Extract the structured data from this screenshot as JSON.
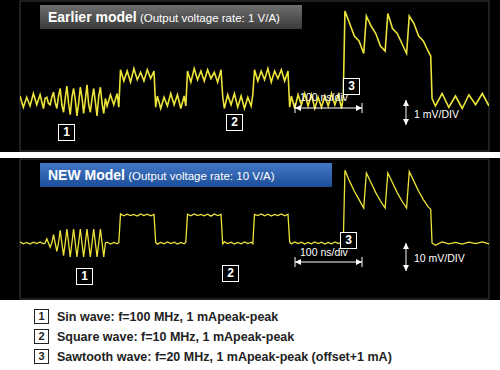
{
  "chart_data": [
    {
      "type": "line",
      "title": "Earlier model",
      "subtitle": "(Output voltage rate: 1 V/A)",
      "color": "#ece43a",
      "xlim": [
        0,
        700
      ],
      "ylim": [
        -2,
        4
      ],
      "tick_labels": false,
      "annotations": [
        "1",
        "2",
        "3",
        "100 ns/div",
        "1 mV/DIV"
      ],
      "x": [
        0,
        5,
        10,
        15,
        20,
        25,
        30,
        35,
        37.5,
        40,
        42.5,
        45,
        47.5,
        50,
        52.5,
        55,
        57.5,
        60,
        62.5,
        65,
        67.5,
        70,
        72.5,
        75,
        77.5,
        80,
        82.5,
        85,
        87.5,
        90,
        92.5,
        95,
        97.5,
        100,
        102.5,
        105,
        107.5,
        110,
        112.5,
        115,
        117.5,
        120,
        122.5,
        125,
        127.5,
        130,
        135,
        140,
        145,
        147.5,
        150,
        155,
        160,
        165,
        170,
        175,
        180,
        185,
        190,
        195,
        200,
        202.5,
        205,
        210,
        215,
        220,
        225,
        230,
        235,
        240,
        245,
        247.5,
        250,
        255,
        260,
        265,
        270,
        275,
        280,
        285,
        290,
        295,
        300,
        302.5,
        305,
        310,
        315,
        320,
        325,
        330,
        335,
        340,
        345,
        347.5,
        350,
        355,
        360,
        365,
        370,
        375,
        380,
        385,
        390,
        395,
        400,
        402.5,
        405,
        410,
        415,
        420,
        425,
        430,
        435,
        440,
        445,
        450,
        455,
        460,
        465,
        470,
        475,
        480,
        482.5,
        485,
        492,
        499,
        506,
        513,
        517,
        524,
        531,
        538,
        545,
        549,
        556,
        563,
        570,
        577,
        581,
        588,
        595,
        602,
        609,
        613,
        615,
        620,
        630,
        640,
        650,
        660,
        670,
        680,
        690,
        700
      ],
      "values": [
        0.2,
        -0.25,
        0.15,
        -0.2,
        0.3,
        -0.15,
        0.25,
        -0.3,
        0.1,
        0.15,
        -0.1,
        -0.15,
        0.15,
        0.35,
        -0.05,
        -0.3,
        0.2,
        0.5,
        -0.15,
        -0.45,
        0.1,
        0.6,
        -0.1,
        -0.55,
        0.15,
        0.5,
        0.05,
        -0.6,
        -0.1,
        0.55,
        0.15,
        -0.5,
        0.05,
        0.65,
        -0.15,
        -0.45,
        0.1,
        0.5,
        -0.05,
        -0.6,
        0.2,
        0.55,
        -0.1,
        -0.5,
        0.1,
        -0.2,
        0.25,
        -0.15,
        0.3,
        -0.25,
        1.25,
        0.8,
        1.2,
        0.75,
        1.3,
        0.85,
        1.15,
        0.8,
        1.25,
        0.9,
        1.2,
        -0.25,
        0.2,
        -0.3,
        0.15,
        -0.2,
        0.3,
        -0.15,
        0.25,
        -0.3,
        0.2,
        -0.2,
        1.2,
        0.75,
        1.3,
        0.85,
        1.2,
        0.8,
        1.25,
        0.9,
        1.15,
        0.75,
        1.25,
        0.2,
        -0.3,
        0.25,
        -0.15,
        0.3,
        -0.25,
        0.2,
        -0.3,
        0.15,
        -0.2,
        0.25,
        1.25,
        0.8,
        1.2,
        0.85,
        1.3,
        0.75,
        1.2,
        0.9,
        1.25,
        0.8,
        1.2,
        -0.25,
        0.2,
        -0.3,
        0.25,
        -0.15,
        0.3,
        -0.2,
        0.25,
        -0.3,
        0.15,
        -0.25,
        0.2,
        -0.2,
        0.3,
        -0.15,
        0.25,
        -0.3,
        0.2,
        3.6,
        3.1,
        2.6,
        2.4,
        1.9,
        3.4,
        3.0,
        2.7,
        2.2,
        2.0,
        3.5,
        2.9,
        2.7,
        2.3,
        1.9,
        3.4,
        3.1,
        2.6,
        2.4,
        2.0,
        1.8,
        0.1,
        -0.2,
        0.3,
        -0.25,
        0.2,
        -0.3,
        0.25,
        -0.15,
        0.3,
        -0.2
      ]
    },
    {
      "type": "line",
      "title": "NEW Model",
      "subtitle": "(Output voltage rate: 10 V/A)",
      "color": "#ece43a",
      "xlim": [
        0,
        700
      ],
      "ylim": [
        -20,
        30
      ],
      "tick_labels": false,
      "annotations": [
        "1",
        "2",
        "3",
        "100 ns/div",
        "10 mV/DIV"
      ],
      "x": [
        0,
        5,
        10,
        15,
        20,
        25,
        30,
        35,
        37.5,
        40,
        42.5,
        45,
        47.5,
        50,
        52.5,
        55,
        57.5,
        60,
        62.5,
        65,
        67.5,
        70,
        72.5,
        75,
        77.5,
        80,
        82.5,
        85,
        87.5,
        90,
        92.5,
        95,
        97.5,
        100,
        102.5,
        105,
        107.5,
        110,
        112.5,
        115,
        117.5,
        120,
        122.5,
        125,
        127.5,
        130,
        135,
        140,
        145,
        147.5,
        150,
        155,
        160,
        165,
        170,
        175,
        180,
        185,
        190,
        195,
        200,
        202.5,
        205,
        210,
        215,
        220,
        225,
        230,
        235,
        240,
        245,
        247.5,
        250,
        255,
        260,
        265,
        270,
        275,
        280,
        285,
        290,
        295,
        300,
        302.5,
        305,
        310,
        315,
        320,
        325,
        330,
        335,
        340,
        345,
        347.5,
        350,
        355,
        360,
        365,
        370,
        375,
        380,
        385,
        390,
        395,
        400,
        402.5,
        405,
        410,
        415,
        420,
        425,
        430,
        435,
        440,
        445,
        450,
        455,
        460,
        465,
        470,
        475,
        480,
        482.5,
        485,
        492,
        499,
        506,
        513,
        517,
        524,
        531,
        538,
        545,
        549,
        556,
        563,
        570,
        577,
        581,
        588,
        595,
        602,
        609,
        613,
        615,
        620,
        630,
        640,
        650,
        660,
        670,
        680,
        690,
        700
      ],
      "values": [
        0.4,
        -0.3,
        0.2,
        -0.4,
        0.3,
        -0.2,
        0.4,
        -0.3,
        0,
        1.5,
        0,
        -1.5,
        0,
        3,
        0,
        -3,
        0,
        4.5,
        0,
        -4.5,
        0,
        5,
        0,
        -5,
        0,
        5,
        0,
        -5,
        0,
        5,
        0,
        -5,
        0,
        5,
        0,
        -5,
        0,
        5,
        0,
        -5,
        0,
        5,
        0,
        -5,
        0,
        0.3,
        -0.4,
        0.2,
        -0.3,
        0.2,
        10.4,
        9.7,
        10.3,
        9.8,
        10.2,
        9.6,
        10.4,
        9.8,
        10.3,
        9.7,
        10.2,
        0.3,
        -0.4,
        0.2,
        -0.3,
        0.4,
        -0.2,
        0.3,
        -0.4,
        0.2,
        -0.3,
        0.3,
        10.3,
        9.7,
        10.4,
        9.8,
        10.2,
        9.7,
        10.3,
        9.6,
        10.4,
        9.8,
        10.2,
        -0.3,
        0.4,
        -0.2,
        0.3,
        -0.4,
        0.2,
        -0.3,
        0.4,
        -0.2,
        0.3,
        -0.3,
        10.2,
        9.8,
        10.4,
        9.7,
        10.3,
        9.6,
        10.2,
        9.8,
        10.4,
        9.7,
        10.3,
        0.3,
        -0.3,
        0.4,
        -0.2,
        0.3,
        -0.4,
        0.2,
        -0.3,
        0.4,
        -0.2,
        0.3,
        -0.4,
        0.2,
        -0.3,
        0.4,
        -0.2,
        0.3,
        0.2,
        26,
        22,
        18.5,
        15.5,
        12.5,
        25,
        21.5,
        18,
        15,
        12.5,
        25,
        21.5,
        18,
        15,
        12.5,
        25.5,
        22,
        18.5,
        15.5,
        13,
        12,
        0,
        -0.8,
        0.4,
        -0.3,
        0.2,
        -0.4,
        0.3,
        -0.2,
        0.4,
        -0.3
      ]
    }
  ],
  "notes": [
    {
      "label": "1",
      "text": "Sin wave: f=100 MHz, 1 mApeak-peak"
    },
    {
      "label": "2",
      "text": "Square wave: f=10 MHz, 1 mApeak-peak"
    },
    {
      "label": "3",
      "text": "Sawtooth wave: f=20 MHz, 1 mApeak-peak (offset+1 mA)"
    }
  ]
}
